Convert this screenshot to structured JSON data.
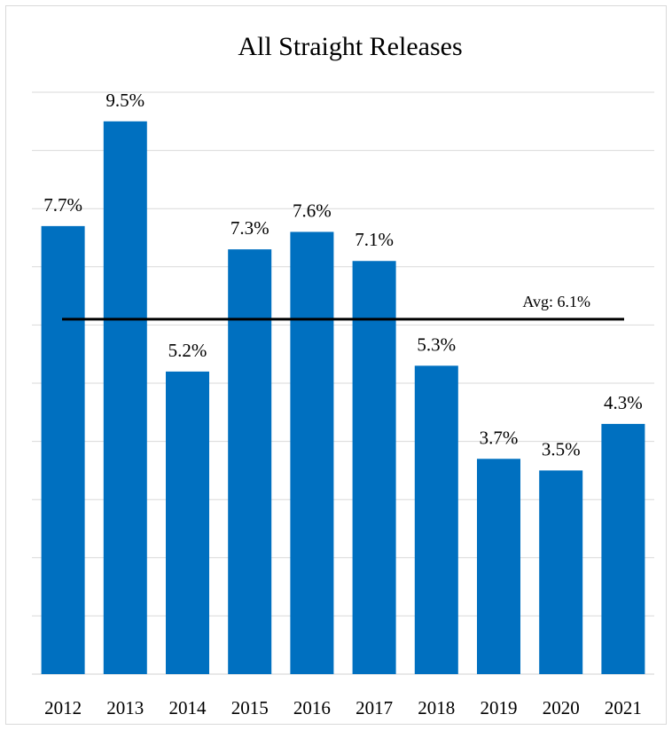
{
  "chart_data": {
    "type": "bar",
    "title": "All Straight Releases",
    "categories": [
      "2012",
      "2013",
      "2014",
      "2015",
      "2016",
      "2017",
      "2018",
      "2019",
      "2020",
      "2021"
    ],
    "values": [
      7.7,
      9.5,
      5.2,
      7.3,
      7.6,
      7.1,
      5.3,
      3.7,
      3.5,
      4.3
    ],
    "data_labels": [
      "7.7%",
      "9.5%",
      "5.2%",
      "7.3%",
      "7.6%",
      "7.1%",
      "5.3%",
      "3.7%",
      "3.5%",
      "4.3%"
    ],
    "bar_color": "#0070C0",
    "ylim": [
      0,
      10
    ],
    "grid": true,
    "legend": "none",
    "average": {
      "value": 6.1,
      "label": "Avg: 6.1%",
      "color": "#000000"
    }
  }
}
